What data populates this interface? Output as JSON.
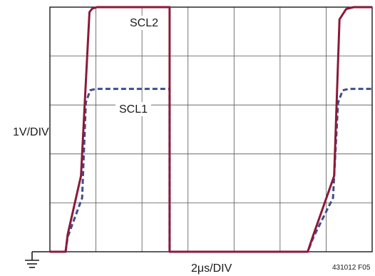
{
  "chart_data": {
    "type": "line",
    "title": "",
    "xlabel": "2μs/DIV",
    "ylabel": "1V/DIV",
    "figure_id": "431012 F05",
    "grid": true,
    "x_divisions": 7,
    "y_divisions": 5,
    "xlim": [
      0,
      14
    ],
    "ylim": [
      0,
      5
    ],
    "ground_reference_symbol": "ground-icon",
    "series": [
      {
        "name": "SCL2",
        "color": "#8b1a3a",
        "style": "solid",
        "x": [
          0,
          0.68,
          0.77,
          1.35,
          1.72,
          1.84,
          2.05,
          2.4,
          5.2,
          5.2,
          11.2,
          11.45,
          12.35,
          12.58,
          12.87,
          13.2,
          14
        ],
        "y": [
          0,
          0,
          0.35,
          1.55,
          4.9,
          4.97,
          5,
          5,
          5,
          0,
          0,
          0.35,
          1.55,
          4.75,
          4.96,
          5,
          5
        ]
      },
      {
        "name": "SCL1",
        "color": "#3d4e8a",
        "style": "dashed",
        "x": [
          0,
          0.68,
          0.77,
          1.4,
          1.56,
          1.75,
          2.0,
          5.2,
          5.2,
          11.2,
          11.45,
          12.3,
          12.52,
          12.72,
          13.0,
          14
        ],
        "y": [
          0,
          0,
          0.3,
          1.1,
          3.05,
          3.3,
          3.33,
          3.33,
          0,
          0,
          0.3,
          1.1,
          3.05,
          3.3,
          3.33,
          3.33
        ]
      }
    ]
  }
}
